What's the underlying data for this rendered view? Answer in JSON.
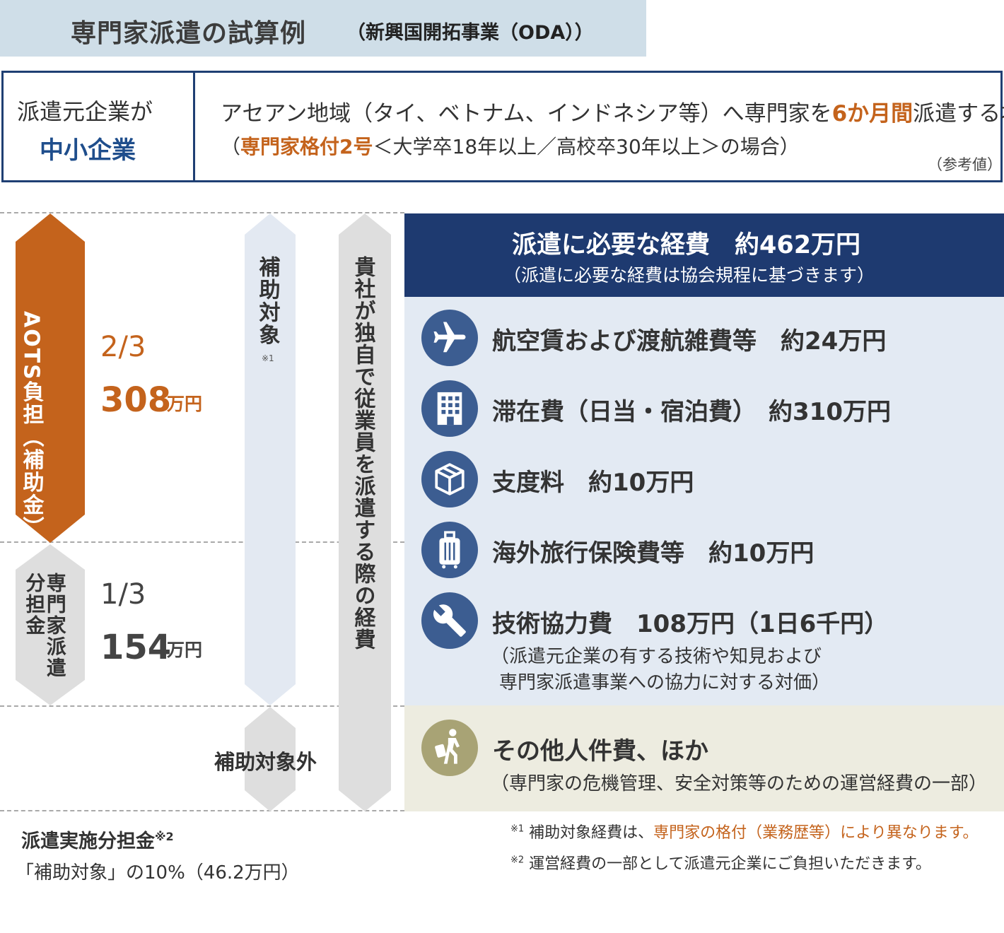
{
  "title": {
    "main": "専門家派遣の試算例",
    "sub": "（新興国開拓事業（ODA））"
  },
  "info": {
    "left_line1": "派遣元企業が",
    "left_line2": "中小企業",
    "line1_pre": "アセアン地域（タイ、ベトナム、インドネシア等）へ専門家を",
    "line1_highlight": "6か月間",
    "line1_post": "派遣する場合",
    "line2_pre": "（",
    "line2_highlight": "専門家格付2号",
    "line2_post": "＜大学卒18年以上／高校卒30年以上＞の場合）",
    "ref": "（参考値）"
  },
  "bars": {
    "aots": "AOTS負担（補助金）",
    "dispatch": "専門家派遣分担金",
    "subsidy": "補助対象",
    "subsidy_note": "※1",
    "nonsubsidy": "補助対象外",
    "company": "貴社が独自で従業員を派遣する際の経費"
  },
  "shares": {
    "aots_fraction": "2/3",
    "aots_amount": "308",
    "aots_unit": "万円",
    "dispatch_fraction": "1/3",
    "dispatch_amount": "154",
    "dispatch_unit": "万円"
  },
  "panel": {
    "title": "派遣に必要な経費　約462万円",
    "subtitle": "（派遣に必要な経費は協会規程に基づきます）",
    "items": [
      {
        "icon": "airplane-icon",
        "text": "航空賃および渡航雑費等　約24万円"
      },
      {
        "icon": "building-icon",
        "text": "滞在費（日当・宿泊費）　約310万円"
      },
      {
        "icon": "box-icon",
        "text": "支度料　約10万円"
      },
      {
        "icon": "suitcase-icon",
        "text": "海外旅行保険費等　約10万円"
      },
      {
        "icon": "wrench-icon",
        "text": "技術協力費　108万円（1日6千円）",
        "note1": "（派遣元企業の有する技術や知見および",
        "note2": "専門家派遣事業への協力に対する対価）"
      }
    ],
    "other": {
      "icon": "traveler-icon",
      "text": "その他人件費、ほか",
      "note": "（専門家の危機管理、安全対策等のための運営経費の一部）"
    }
  },
  "footer": {
    "title": "派遣実施分担金",
    "title_sup": "※2",
    "detail": "「補助対象」の10%（46.2万円）",
    "note1_sup": "※1",
    "note1_pre": " 補助対象経費は、",
    "note1_highlight": "専門家の格付（業務歴等）により異なります。",
    "note2_sup": "※2",
    "note2_text": " 運営経費の一部として派遣元企業にご負担いただきます。"
  },
  "colors": {
    "navy": "#1e3a70",
    "orange": "#c4631c",
    "light_blue": "#e3eaf3",
    "olive": "#a8a375"
  }
}
